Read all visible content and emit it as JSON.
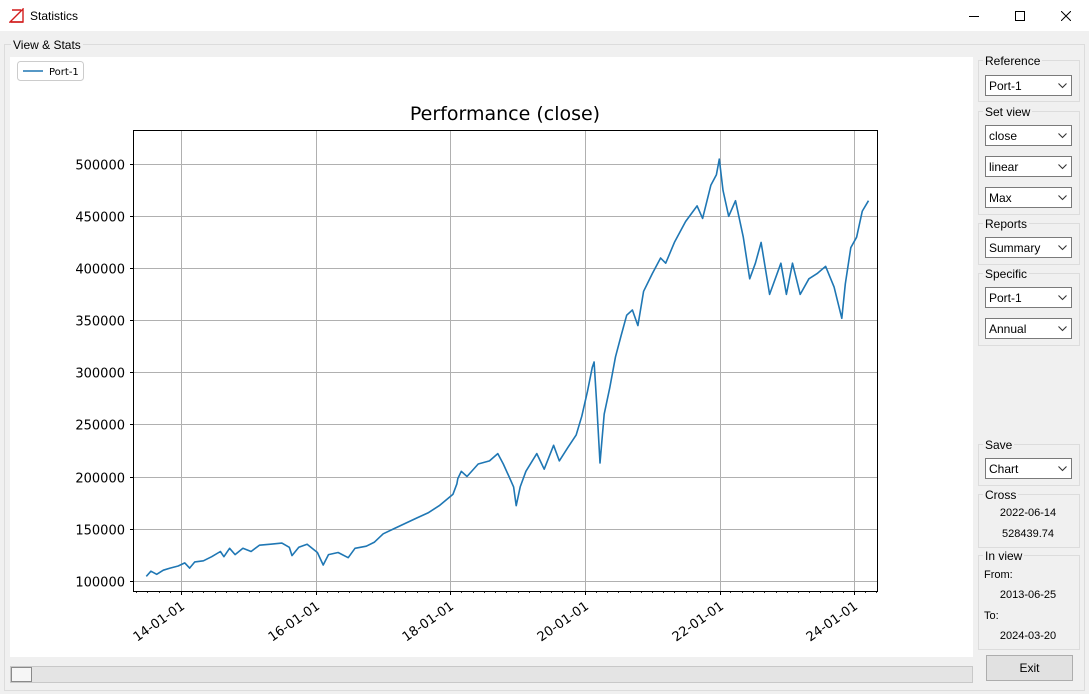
{
  "window": {
    "title": "Statistics"
  },
  "view_stats_label": "View & Stats",
  "sidebar": {
    "reference": {
      "label": "Reference",
      "value": "Port-1"
    },
    "set_view": {
      "label": "Set view",
      "field": "close",
      "scale": "linear",
      "range": "Max"
    },
    "reports": {
      "label": "Reports",
      "value": "Summary"
    },
    "specific": {
      "label": "Specific",
      "port": "Port-1",
      "period": "Annual"
    },
    "save": {
      "label": "Save",
      "value": "Chart"
    },
    "cross": {
      "label": "Cross",
      "date": "2022-06-14",
      "value": "528439.74"
    },
    "in_view": {
      "label": "In view",
      "from_label": "From:",
      "from": "2013-06-25",
      "to_label": "To:",
      "to": "2024-03-20"
    },
    "exit_label": "Exit"
  },
  "chart_data": {
    "type": "line",
    "title": "Performance (close)",
    "xlabel": "",
    "ylabel": "",
    "grid": true,
    "legend_position": "top-left",
    "y_ticks": [
      "100000",
      "150000",
      "200000",
      "250000",
      "300000",
      "350000",
      "400000",
      "450000",
      "500000"
    ],
    "x_ticks": [
      "14-01-01",
      "16-01-01",
      "18-01-01",
      "20-01-01",
      "22-01-01",
      "24-01-01"
    ],
    "xlim": [
      "2013-04-19",
      "2024-05-05"
    ],
    "ylim": [
      90000,
      532000
    ],
    "series": [
      {
        "name": "Port-1",
        "color": "#1f77b4",
        "points": [
          [
            "2013-06-25",
            104000
          ],
          [
            "2013-07-20",
            109000
          ],
          [
            "2013-08-20",
            106000
          ],
          [
            "2013-09-25",
            110000
          ],
          [
            "2013-11-01",
            112000
          ],
          [
            "2013-12-15",
            114000
          ],
          [
            "2014-01-20",
            117000
          ],
          [
            "2014-02-15",
            112000
          ],
          [
            "2014-03-15",
            118000
          ],
          [
            "2014-05-01",
            119000
          ],
          [
            "2014-06-15",
            123000
          ],
          [
            "2014-08-01",
            128000
          ],
          [
            "2014-08-20",
            123000
          ],
          [
            "2014-09-20",
            131000
          ],
          [
            "2014-10-20",
            125000
          ],
          [
            "2014-12-01",
            131000
          ],
          [
            "2015-01-15",
            128000
          ],
          [
            "2015-03-01",
            134000
          ],
          [
            "2015-05-01",
            135000
          ],
          [
            "2015-07-01",
            136000
          ],
          [
            "2015-08-10",
            132000
          ],
          [
            "2015-08-25",
            124000
          ],
          [
            "2015-10-01",
            132000
          ],
          [
            "2015-11-15",
            135000
          ],
          [
            "2016-01-10",
            127000
          ],
          [
            "2016-02-10",
            115000
          ],
          [
            "2016-03-10",
            125000
          ],
          [
            "2016-05-01",
            127000
          ],
          [
            "2016-06-25",
            122000
          ],
          [
            "2016-08-01",
            131000
          ],
          [
            "2016-10-01",
            133000
          ],
          [
            "2016-11-15",
            137000
          ],
          [
            "2017-01-01",
            145000
          ],
          [
            "2017-03-01",
            150000
          ],
          [
            "2017-05-01",
            155000
          ],
          [
            "2017-07-01",
            160000
          ],
          [
            "2017-09-01",
            165000
          ],
          [
            "2017-11-01",
            172000
          ],
          [
            "2018-01-15",
            183000
          ],
          [
            "2018-02-05",
            193000
          ],
          [
            "2018-02-10",
            198000
          ],
          [
            "2018-03-01",
            205000
          ],
          [
            "2018-04-01",
            200000
          ],
          [
            "2018-06-01",
            212000
          ],
          [
            "2018-08-01",
            215000
          ],
          [
            "2018-09-15",
            222000
          ],
          [
            "2018-10-15",
            212000
          ],
          [
            "2018-11-15",
            200000
          ],
          [
            "2018-12-10",
            190000
          ],
          [
            "2018-12-24",
            172000
          ],
          [
            "2019-01-15",
            190000
          ],
          [
            "2019-02-15",
            205000
          ],
          [
            "2019-04-15",
            222000
          ],
          [
            "2019-05-25",
            207000
          ],
          [
            "2019-07-15",
            230000
          ],
          [
            "2019-08-15",
            215000
          ],
          [
            "2019-10-01",
            228000
          ],
          [
            "2019-11-15",
            240000
          ],
          [
            "2019-12-15",
            258000
          ],
          [
            "2020-01-15",
            282000
          ],
          [
            "2020-02-10",
            305000
          ],
          [
            "2020-02-20",
            310000
          ],
          [
            "2020-03-05",
            270000
          ],
          [
            "2020-03-23",
            213000
          ],
          [
            "2020-04-15",
            260000
          ],
          [
            "2020-05-15",
            285000
          ],
          [
            "2020-06-15",
            315000
          ],
          [
            "2020-07-15",
            335000
          ],
          [
            "2020-08-15",
            355000
          ],
          [
            "2020-09-15",
            360000
          ],
          [
            "2020-10-15",
            345000
          ],
          [
            "2020-11-15",
            378000
          ],
          [
            "2021-01-01",
            395000
          ],
          [
            "2021-02-15",
            410000
          ],
          [
            "2021-03-15",
            405000
          ],
          [
            "2021-05-01",
            425000
          ],
          [
            "2021-07-01",
            445000
          ],
          [
            "2021-09-01",
            460000
          ],
          [
            "2021-10-01",
            448000
          ],
          [
            "2021-11-15",
            480000
          ],
          [
            "2021-12-15",
            490000
          ],
          [
            "2021-12-31",
            505000
          ],
          [
            "2022-01-20",
            475000
          ],
          [
            "2022-02-20",
            450000
          ],
          [
            "2022-03-29",
            465000
          ],
          [
            "2022-05-10",
            430000
          ],
          [
            "2022-06-14",
            390000
          ],
          [
            "2022-07-15",
            405000
          ],
          [
            "2022-08-15",
            425000
          ],
          [
            "2022-09-30",
            375000
          ],
          [
            "2022-11-30",
            405000
          ],
          [
            "2022-12-30",
            375000
          ],
          [
            "2023-02-01",
            405000
          ],
          [
            "2023-03-15",
            375000
          ],
          [
            "2023-05-01",
            390000
          ],
          [
            "2023-06-15",
            395000
          ],
          [
            "2023-07-31",
            402000
          ],
          [
            "2023-09-15",
            382000
          ],
          [
            "2023-10-27",
            352000
          ],
          [
            "2023-11-15",
            385000
          ],
          [
            "2023-12-15",
            420000
          ],
          [
            "2024-01-15",
            430000
          ],
          [
            "2024-02-15",
            455000
          ],
          [
            "2024-03-20",
            465000
          ]
        ]
      }
    ]
  }
}
